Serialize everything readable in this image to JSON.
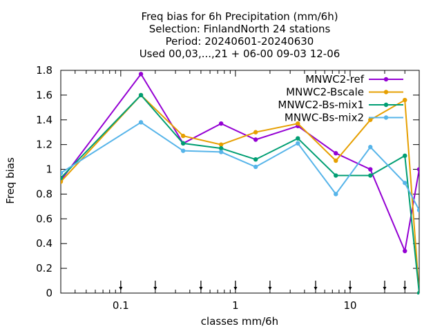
{
  "chart_data": {
    "type": "line",
    "title": [
      "Freq bias  for 6h Precipitation (mm/6h)",
      "Selection: FinlandNorth     24 stations",
      "Period: 20240601-20240630",
      "Used 00,03,...,21 + 06-00 09-03 12-06"
    ],
    "xlabel": "classes mm/6h",
    "ylabel": "Freq bias",
    "xscale": "log",
    "xlim": [
      0.03,
      40
    ],
    "ylim": [
      0,
      1.8
    ],
    "x_ticks": [
      0.1,
      1,
      10
    ],
    "x_tick_labels": [
      "0.1",
      "1",
      "10"
    ],
    "y_ticks": [
      0,
      0.2,
      0.4,
      0.6,
      0.8,
      1,
      1.2,
      1.4,
      1.6,
      1.8
    ],
    "y_tick_labels": [
      "0",
      "0.2",
      "0.4",
      "0.6",
      "0.8",
      "1",
      "1.2",
      "1.4",
      "1.6",
      "1.8"
    ],
    "class_markers": [
      0.1,
      0.2,
      0.5,
      1,
      2,
      5,
      10,
      20,
      30
    ],
    "grid": false,
    "legend_position": "top-right",
    "x": [
      0.03,
      0.15,
      0.35,
      0.75,
      1.5,
      3.5,
      7.5,
      15,
      30,
      40
    ],
    "series": [
      {
        "name": "MNWC2-ref",
        "color": "#9400d3",
        "values": [
          0.91,
          1.77,
          1.21,
          1.37,
          1.24,
          1.35,
          1.13,
          1.0,
          0.34,
          1.0
        ]
      },
      {
        "name": "MNWC2-Bscale",
        "color": "#e69f00",
        "values": [
          0.9,
          1.6,
          1.27,
          1.2,
          1.3,
          1.37,
          1.07,
          1.4,
          1.56,
          0.0
        ]
      },
      {
        "name": "MNWC2-Bs-mix1",
        "color": "#009e73",
        "values": [
          0.93,
          1.6,
          1.21,
          1.17,
          1.08,
          1.25,
          0.95,
          0.95,
          1.11,
          0.0
        ]
      },
      {
        "name": "MNWC-Bs-mix2",
        "color": "#56b4e9",
        "values": [
          0.97,
          1.38,
          1.15,
          1.14,
          1.02,
          1.21,
          0.8,
          1.18,
          0.89,
          0.67
        ]
      }
    ]
  }
}
